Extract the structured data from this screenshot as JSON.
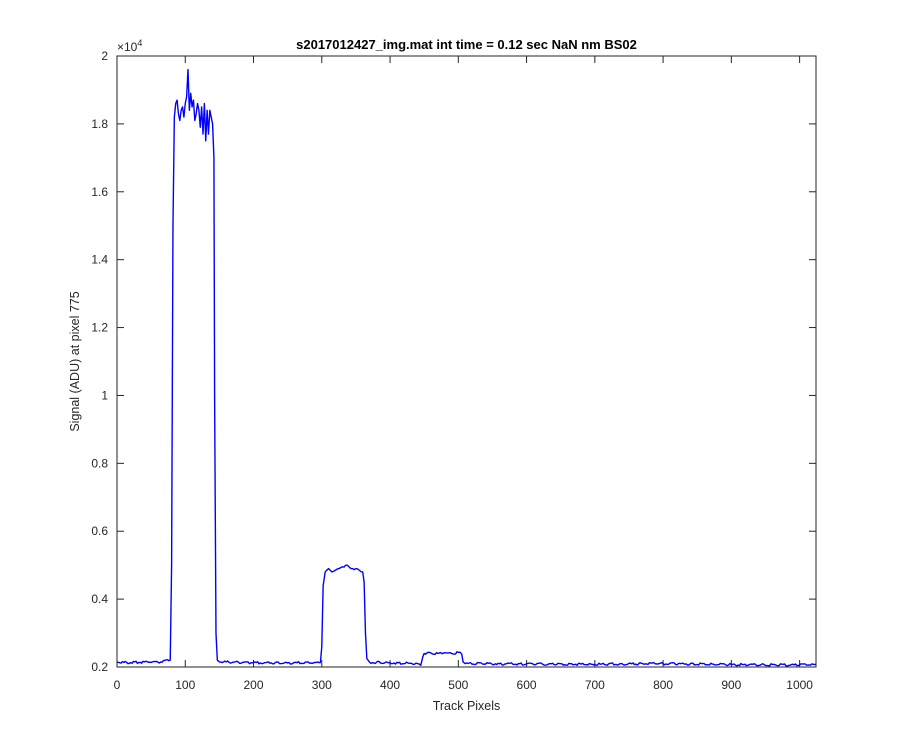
{
  "chart_data": {
    "type": "line",
    "title": "s2017012427_img.mat int time = 0.12 sec  NaN nm BS02",
    "xlabel": "Track Pixels",
    "ylabel": "Signal (ADU) at pixel 775",
    "exponent_label": "×10",
    "exponent_power": "4",
    "xlim": [
      0,
      1024
    ],
    "ylim": [
      0.2,
      2.0
    ],
    "xticks": [
      0,
      100,
      200,
      300,
      400,
      500,
      600,
      700,
      800,
      900,
      1000
    ],
    "xtick_labels": [
      "0",
      "100",
      "200",
      "300",
      "400",
      "500",
      "600",
      "700",
      "800",
      "900",
      "1000"
    ],
    "yticks": [
      0.2,
      0.4,
      0.6,
      0.8,
      1.0,
      1.2,
      1.4,
      1.6,
      1.8,
      2.0
    ],
    "ytick_labels": [
      "0.2",
      "0.4",
      "0.6",
      "0.8",
      "1",
      "1.2",
      "1.4",
      "1.6",
      "1.8",
      "2"
    ],
    "grid": false,
    "line_color": "#0000ff",
    "series": [
      {
        "x": [
          0,
          20,
          40,
          60,
          78,
          80,
          82,
          84,
          86,
          88,
          90,
          92,
          94,
          96,
          98,
          100,
          102,
          104,
          106,
          108,
          110,
          112,
          114,
          116,
          118,
          120,
          122,
          124,
          126,
          128,
          130,
          132,
          134,
          136,
          138,
          140,
          142,
          143,
          145,
          147,
          150,
          200,
          250,
          298,
          300,
          302,
          305,
          310,
          315,
          320,
          325,
          330,
          335,
          340,
          345,
          350,
          355,
          360,
          362,
          364,
          366,
          370,
          400,
          440,
          445,
          448,
          450,
          460,
          470,
          480,
          490,
          500,
          505,
          507,
          510,
          600,
          700,
          800,
          900,
          1000,
          1024
        ],
        "y": [
          0.214,
          0.213,
          0.215,
          0.214,
          0.22,
          0.5,
          1.5,
          1.82,
          1.86,
          1.87,
          1.83,
          1.81,
          1.84,
          1.85,
          1.82,
          1.86,
          1.88,
          1.96,
          1.84,
          1.89,
          1.85,
          1.87,
          1.81,
          1.83,
          1.86,
          1.84,
          1.79,
          1.85,
          1.77,
          1.86,
          1.75,
          1.84,
          1.77,
          1.84,
          1.82,
          1.8,
          1.7,
          1.0,
          0.3,
          0.22,
          0.215,
          0.213,
          0.212,
          0.213,
          0.26,
          0.44,
          0.48,
          0.49,
          0.48,
          0.485,
          0.49,
          0.495,
          0.5,
          0.495,
          0.49,
          0.49,
          0.485,
          0.48,
          0.45,
          0.3,
          0.225,
          0.214,
          0.212,
          0.21,
          0.205,
          0.23,
          0.24,
          0.241,
          0.24,
          0.242,
          0.24,
          0.243,
          0.238,
          0.215,
          0.21,
          0.209,
          0.208,
          0.21,
          0.207,
          0.206,
          0.207
        ]
      }
    ]
  }
}
